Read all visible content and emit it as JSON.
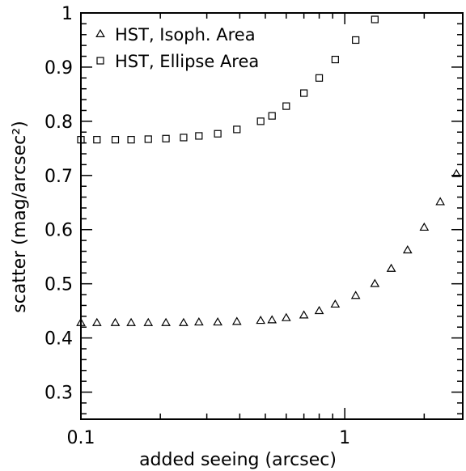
{
  "chart_data": {
    "type": "scatter",
    "title": "",
    "xlabel": "added seeing (arcsec)",
    "ylabel": "scatter (mag/arcsec²)",
    "x_scale": "log",
    "xlim": [
      0.1,
      2.8
    ],
    "ylim": [
      0.25,
      1.0
    ],
    "x_ticks": [
      {
        "value": 0.1,
        "label": "0.1"
      },
      {
        "value": 1,
        "label": "1"
      }
    ],
    "y_ticks": [
      {
        "value": 0.3,
        "label": "0.3"
      },
      {
        "value": 0.4,
        "label": "0.4"
      },
      {
        "value": 0.5,
        "label": "0.5"
      },
      {
        "value": 0.6,
        "label": "0.6"
      },
      {
        "value": 0.7,
        "label": "0.7"
      },
      {
        "value": 0.8,
        "label": "0.8"
      },
      {
        "value": 0.9,
        "label": "0.9"
      },
      {
        "value": 1.0,
        "label": "1"
      }
    ],
    "legend": {
      "placement": "top-left"
    },
    "grid": false,
    "series": [
      {
        "name": "HST, Isoph. Area",
        "marker": "triangle",
        "color": "#000000",
        "points": [
          [
            0.1,
            0.428
          ],
          [
            0.115,
            0.428
          ],
          [
            0.135,
            0.428
          ],
          [
            0.155,
            0.428
          ],
          [
            0.18,
            0.428
          ],
          [
            0.21,
            0.428
          ],
          [
            0.245,
            0.428
          ],
          [
            0.28,
            0.429
          ],
          [
            0.33,
            0.429
          ],
          [
            0.39,
            0.43
          ],
          [
            0.48,
            0.432
          ],
          [
            0.53,
            0.433
          ],
          [
            0.6,
            0.437
          ],
          [
            0.7,
            0.442
          ],
          [
            0.8,
            0.45
          ],
          [
            0.92,
            0.462
          ],
          [
            1.1,
            0.478
          ],
          [
            1.3,
            0.5
          ],
          [
            1.5,
            0.528
          ],
          [
            1.73,
            0.562
          ],
          [
            2.0,
            0.604
          ],
          [
            2.3,
            0.651
          ],
          [
            2.65,
            0.703
          ]
        ]
      },
      {
        "name": "HST, Ellipse Area",
        "marker": "square",
        "color": "#000000",
        "points": [
          [
            0.1,
            0.766
          ],
          [
            0.115,
            0.766
          ],
          [
            0.135,
            0.766
          ],
          [
            0.155,
            0.766
          ],
          [
            0.18,
            0.767
          ],
          [
            0.21,
            0.768
          ],
          [
            0.245,
            0.77
          ],
          [
            0.28,
            0.773
          ],
          [
            0.33,
            0.777
          ],
          [
            0.39,
            0.785
          ],
          [
            0.48,
            0.8
          ],
          [
            0.53,
            0.81
          ],
          [
            0.6,
            0.828
          ],
          [
            0.7,
            0.852
          ],
          [
            0.8,
            0.88
          ],
          [
            0.92,
            0.914
          ],
          [
            1.1,
            0.95
          ],
          [
            1.3,
            0.988
          ]
        ]
      }
    ]
  }
}
